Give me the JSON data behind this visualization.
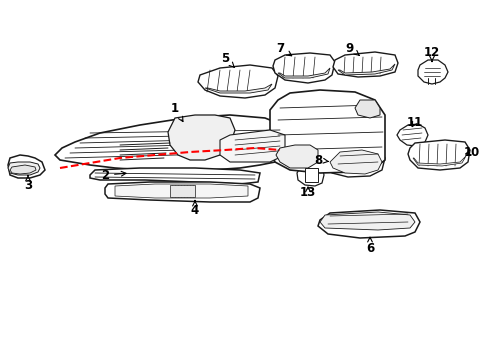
{
  "bg_color": "#ffffff",
  "line_color": "#1a1a1a",
  "red_color": "#ff0000",
  "label_color": "#000000",
  "figsize": [
    4.89,
    3.6
  ],
  "dpi": 100
}
